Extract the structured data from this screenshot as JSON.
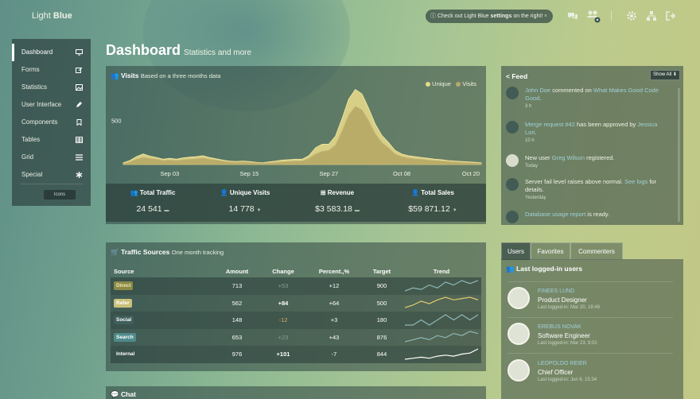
{
  "topbar": {
    "logo_light": "Light",
    "logo_blue": "Blue",
    "notice_prefix": "Check out Light Blue",
    "notice_bold": "settings",
    "notice_suffix": "on the right!",
    "notice_close": "×"
  },
  "sidebar": {
    "items": [
      {
        "label": "Dashboard",
        "icon": "monitor-icon"
      },
      {
        "label": "Forms",
        "icon": "edit-icon"
      },
      {
        "label": "Statistics",
        "icon": "image-icon"
      },
      {
        "label": "User Interface",
        "icon": "pencil-icon"
      },
      {
        "label": "Components",
        "icon": "bookmark-icon"
      },
      {
        "label": "Tables",
        "icon": "table-icon"
      },
      {
        "label": "Grid",
        "icon": "list-icon"
      },
      {
        "label": "Special",
        "icon": "asterisk-icon"
      }
    ],
    "icons_button": "Icons"
  },
  "header": {
    "title": "Dashboard",
    "subtitle": "Statistics and more"
  },
  "visits": {
    "title": "Visits",
    "subtitle": "Based on a three months data",
    "legend_unique": "Unique",
    "legend_visits": "Visits",
    "stats": [
      {
        "label": "Total Traffic",
        "value": "24 541"
      },
      {
        "label": "Unique Visits",
        "value": "14 778"
      },
      {
        "label": "Revenue",
        "value": "$3 583.18"
      },
      {
        "label": "Total Sales",
        "value": "$59 871.12"
      }
    ]
  },
  "chart_data": {
    "type": "area",
    "x": [
      "Aug 27",
      "Aug 28",
      "Aug 29",
      "Aug 30",
      "Aug 31",
      "Sep 01",
      "Sep 02",
      "Sep 03",
      "Sep 04",
      "Sep 05",
      "Sep 06",
      "Sep 07",
      "Sep 08",
      "Sep 09",
      "Sep 10",
      "Sep 11",
      "Sep 12",
      "Sep 13",
      "Sep 14",
      "Sep 15",
      "Sep 16",
      "Sep 17",
      "Sep 18",
      "Sep 19",
      "Sep 20",
      "Sep 21",
      "Sep 22",
      "Sep 23",
      "Sep 24",
      "Sep 25",
      "Sep 26",
      "Sep 27",
      "Sep 28",
      "Sep 29",
      "Sep 30",
      "Oct 01",
      "Oct 02",
      "Oct 03",
      "Oct 04",
      "Oct 05",
      "Oct 06",
      "Oct 07",
      "Oct 08",
      "Oct 09",
      "Oct 10",
      "Oct 11",
      "Oct 12",
      "Oct 13",
      "Oct 14",
      "Oct 15",
      "Oct 16",
      "Oct 17",
      "Oct 18",
      "Oct 19",
      "Oct 20"
    ],
    "tick_labels": [
      "Sep 03",
      "Sep 15",
      "Sep 27",
      "Oct 08",
      "Oct 20"
    ],
    "y_tick_labels": [
      "500"
    ],
    "series": [
      {
        "name": "Unique",
        "values": [
          20,
          45,
          90,
          120,
          95,
          80,
          60,
          70,
          60,
          75,
          85,
          90,
          100,
          80,
          65,
          50,
          40,
          35,
          40,
          35,
          25,
          20,
          30,
          40,
          50,
          55,
          60,
          60,
          100,
          190,
          230,
          230,
          320,
          520,
          740,
          850,
          800,
          640,
          460,
          330,
          250,
          160,
          120,
          100,
          90,
          80,
          70,
          60,
          55,
          45,
          40,
          35,
          30,
          25,
          20
        ]
      },
      {
        "name": "Visits",
        "values": [
          10,
          30,
          60,
          80,
          70,
          60,
          45,
          50,
          45,
          55,
          60,
          65,
          75,
          60,
          50,
          40,
          30,
          25,
          30,
          25,
          20,
          15,
          20,
          25,
          30,
          35,
          40,
          40,
          70,
          120,
          150,
          160,
          220,
          380,
          560,
          660,
          620,
          500,
          350,
          250,
          190,
          120,
          90,
          75,
          65,
          60,
          50,
          45,
          40,
          35,
          30,
          25,
          22,
          18,
          15
        ]
      }
    ],
    "ylim": [
      0,
      900
    ]
  },
  "traffic": {
    "title": "Traffic Sources",
    "subtitle": "One month tracking",
    "columns": [
      "Source",
      "Amount",
      "Change",
      "Percent.,%",
      "Target",
      "Trend"
    ],
    "rows": [
      {
        "source": "Direct",
        "amount": "713",
        "change": "+53",
        "percent": "+12",
        "target": "900",
        "badge": "#8a8a45",
        "text": "#f1e9b8",
        "trend": [
          5,
          7,
          6,
          9,
          7,
          11,
          9,
          12,
          10,
          12
        ]
      },
      {
        "source": "Refer",
        "amount": "562",
        "change": "+84",
        "percent": "+64",
        "target": "500",
        "badge": "#c9c07a",
        "text": "#ffffff",
        "trend": [
          4,
          6,
          9,
          7,
          10,
          12,
          10,
          11,
          12,
          10
        ]
      },
      {
        "source": "Social",
        "amount": "148",
        "change": "-12",
        "percent": "+3",
        "target": "180",
        "badge": "#3f5f5c",
        "text": "#ffffff",
        "trend": [
          6,
          6,
          7,
          6,
          7,
          8,
          7,
          8,
          7,
          8
        ]
      },
      {
        "source": "Search",
        "amount": "653",
        "change": "+23",
        "percent": "+43",
        "target": "876",
        "badge": "#4f8a8a",
        "text": "#ffffff",
        "trend": [
          5,
          6,
          7,
          6,
          8,
          7,
          9,
          8,
          10,
          9
        ]
      },
      {
        "source": "Internal",
        "amount": "976",
        "change": "+101",
        "percent": "-7",
        "target": "844",
        "badge": "transparent",
        "text": "#ffffff",
        "trend": [
          2,
          3,
          4,
          3,
          5,
          6,
          5,
          7,
          8,
          12
        ]
      }
    ]
  },
  "chat": {
    "title": "Chat"
  },
  "feed": {
    "title": "Feed",
    "show_all": "Show All",
    "items": [
      {
        "pre": "",
        "link1": "John Doe",
        "mid": " commented on ",
        "link2": "What Makes Good Code Good",
        "post": ".",
        "time": "3 h"
      },
      {
        "pre": "",
        "link1": "Merge request #42",
        "mid": " has been approved by ",
        "link2": "Jessica Lori",
        "post": ".",
        "time": "10 h"
      },
      {
        "pre": "New user ",
        "link1": "Greg Wilson",
        "mid": " registered.",
        "link2": "",
        "post": "",
        "time": "Today"
      },
      {
        "pre": "Server fail level raises above normal. ",
        "link1": "See logs",
        "mid": " for details.",
        "link2": "",
        "post": "",
        "time": "Yesterday"
      },
      {
        "pre": "",
        "link1": "Database usage report",
        "mid": " is ready.",
        "link2": "",
        "post": "",
        "time": ""
      }
    ]
  },
  "users_panel": {
    "tabs": [
      "Users",
      "Favorites",
      "Commenters"
    ],
    "title": "Last logged-in users",
    "users": [
      {
        "name": "FINEES LUND",
        "role": "Product Designer",
        "last": "Last logged-in: Mar 20, 18:46"
      },
      {
        "name": "EREBUS NOVAK",
        "role": "Software Engineer",
        "last": "Last logged-in: Mar 23, 9:02"
      },
      {
        "name": "LEOPOLDO REIER",
        "role": "Chief Officer",
        "last": "Last logged-in: Jun 6, 15:34"
      }
    ]
  }
}
